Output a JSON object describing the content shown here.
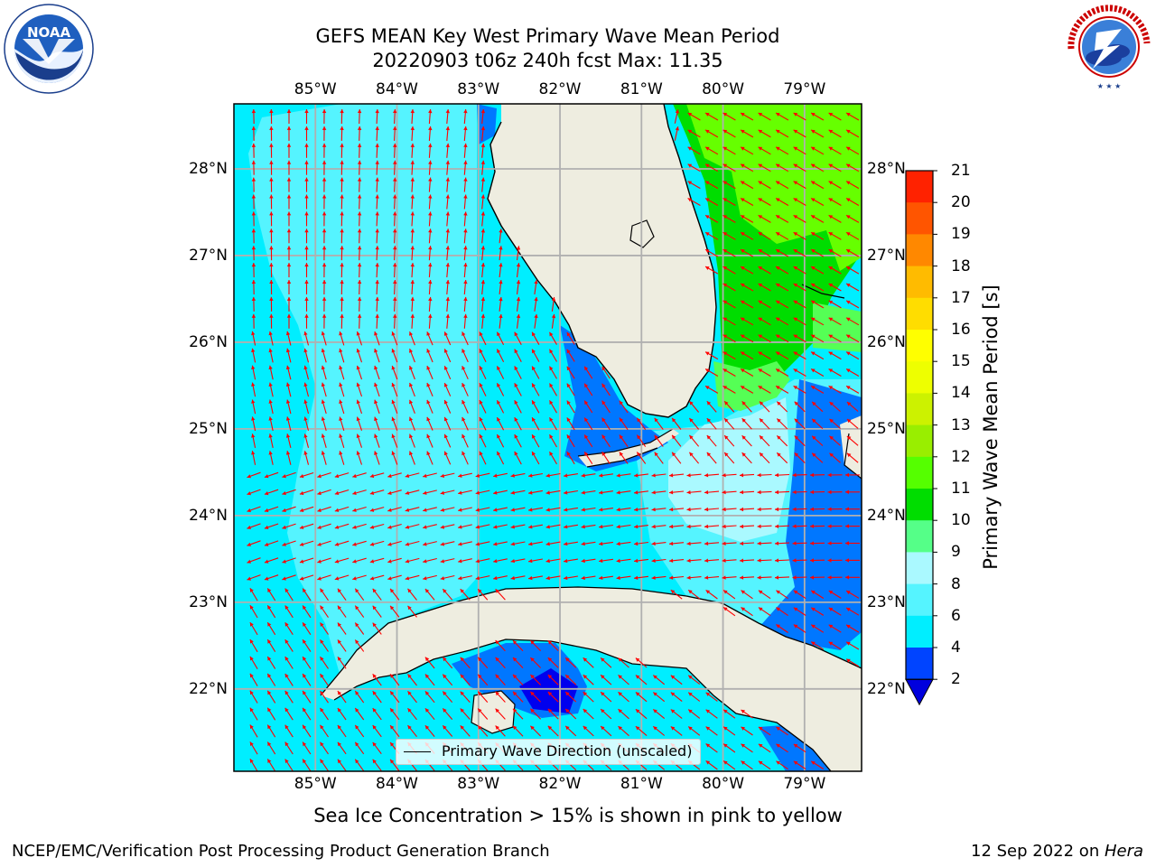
{
  "title_line1": "GEFS MEAN Key West Primary Wave Mean Period",
  "title_line2": "20220903 t06z 240h fcst   Max: 11.35",
  "logos": {
    "left": {
      "name": "NOAA",
      "ring_text": "NATIONAL OCEANIC AND ATMOSPHERIC ADMINISTRATION · U.S. DEPARTMENT OF COMMERCE"
    },
    "right": {
      "name": "National Weather Service",
      "ring_text": "NATIONAL WEATHER SERVICE"
    }
  },
  "map": {
    "lon_labels": [
      "85°W",
      "84°W",
      "83°W",
      "82°W",
      "81°W",
      "80°W",
      "79°W"
    ],
    "lat_labels": [
      "28°N",
      "27°N",
      "26°N",
      "25°N",
      "24°N",
      "23°N",
      "22°N"
    ],
    "colors": {
      "ocean": "#00eeff",
      "light_ocean": "#55f4ff",
      "pale_ocean": "#aaf9ff",
      "deep_blue": "#0077ff",
      "darkest_blue": "#0000ee",
      "green": "#00dd00",
      "light_green": "#55ff55",
      "bright_green": "#66ff00",
      "land": "#eeede0",
      "grid": "#b0b0b0",
      "arrow": "#ff0000"
    },
    "legend": {
      "label": "Primary Wave Direction (unscaled)"
    }
  },
  "colorbar": {
    "title": "Primary Wave Mean Period [s]",
    "tick_labels": [
      "2",
      "4",
      "6",
      "8",
      "9",
      "10",
      "11",
      "12",
      "13",
      "14",
      "15",
      "16",
      "17",
      "18",
      "19",
      "20",
      "21"
    ],
    "colors": [
      "#0044ff",
      "#00eeff",
      "#55f4ff",
      "#aaf9ff",
      "#55ff88",
      "#00dd00",
      "#55ff00",
      "#99ee00",
      "#ccf200",
      "#eeff00",
      "#ffff00",
      "#ffdd00",
      "#ffbb00",
      "#ff8800",
      "#ff5500",
      "#ff2200"
    ],
    "under_color": "#0000dd"
  },
  "sea_ice_note": "Sea Ice Concentration > 15% is shown in pink to yellow",
  "footer_left": "NCEP/EMC/Verification Post Processing Product Generation Branch",
  "footer_right_date": "12 Sep 2022 on ",
  "footer_right_host": "Hera"
}
